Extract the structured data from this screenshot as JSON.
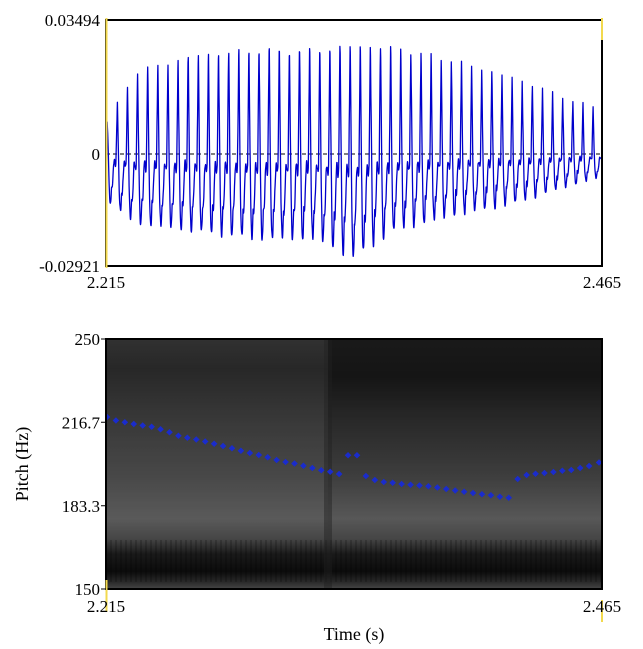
{
  "chart_data": [
    {
      "type": "line",
      "name": "waveform",
      "xlabel": "",
      "ylabel": "",
      "xlim": [
        2.215,
        2.465
      ],
      "ylim": [
        -0.02921,
        0.03494
      ],
      "x_tick_labels": [
        "2.215",
        "2.465"
      ],
      "y_tick_labels": [
        "0.03494",
        "0",
        "-0.02921"
      ],
      "line_color": "#0000cc",
      "marker_color": "#f2d94e",
      "zero_line": true,
      "approx_periods": 49,
      "envelope": {
        "time": [
          2.215,
          2.23,
          2.26,
          2.29,
          2.32,
          2.34,
          2.36,
          2.39,
          2.42,
          2.45,
          2.465
        ],
        "upper": [
          0.008,
          0.022,
          0.027,
          0.029,
          0.029,
          0.03,
          0.029,
          0.025,
          0.02,
          0.014,
          0.012
        ],
        "lower": [
          -0.012,
          -0.018,
          -0.02,
          -0.022,
          -0.022,
          -0.027,
          -0.02,
          -0.016,
          -0.013,
          -0.008,
          -0.006
        ]
      }
    },
    {
      "type": "scatter",
      "name": "pitch",
      "xlabel": "Time (s)",
      "ylabel": "Pitch (Hz)",
      "xlim": [
        2.215,
        2.465
      ],
      "ylim": [
        150,
        250
      ],
      "x_tick_labels": [
        "2.215",
        "2.465"
      ],
      "y_tick_labels": [
        "250",
        "216.7",
        "183.3",
        "150"
      ],
      "background": "spectrogram",
      "marker_color": "#1a2ccc",
      "series": [
        {
          "x": [
            2.2155,
            2.22,
            2.2245,
            2.229,
            2.2335,
            2.238,
            2.2425,
            2.247,
            2.2515,
            2.256,
            2.2605,
            2.265,
            2.2695,
            2.274,
            2.2785,
            2.283,
            2.2875,
            2.292,
            2.2965,
            2.301,
            2.3055,
            2.31,
            2.3145,
            2.319,
            2.3235,
            2.328,
            2.3325,
            2.337,
            2.3415,
            2.346,
            2.3505,
            2.355,
            2.3595,
            2.364,
            2.3685,
            2.373,
            2.3775,
            2.382,
            2.3865,
            2.391,
            2.3955,
            2.4,
            2.4045,
            2.409,
            2.4135,
            2.418,
            2.4225,
            2.427,
            2.4315,
            2.436,
            2.4405,
            2.445,
            2.4495,
            2.454,
            2.4585,
            2.4635
          ],
          "y": [
            218.8,
            217.4,
            216.7,
            216.0,
            215.4,
            214.9,
            213.9,
            212.7,
            211.3,
            210.5,
            209.8,
            209.0,
            208.1,
            207.2,
            206.3,
            205.3,
            204.4,
            203.6,
            202.7,
            201.6,
            200.8,
            200.2,
            199.3,
            198.4,
            197.5,
            196.9,
            196.0,
            203.5,
            203.5,
            195.2,
            193.6,
            192.8,
            192.5,
            192.0,
            191.7,
            191.4,
            191.1,
            190.6,
            190.0,
            189.4,
            188.9,
            188.4,
            187.9,
            187.5,
            186.9,
            186.5,
            194.0,
            195.6,
            196.1,
            196.4,
            196.8,
            197.3,
            197.6,
            198.4,
            199.2,
            200.6
          ]
        }
      ]
    }
  ]
}
